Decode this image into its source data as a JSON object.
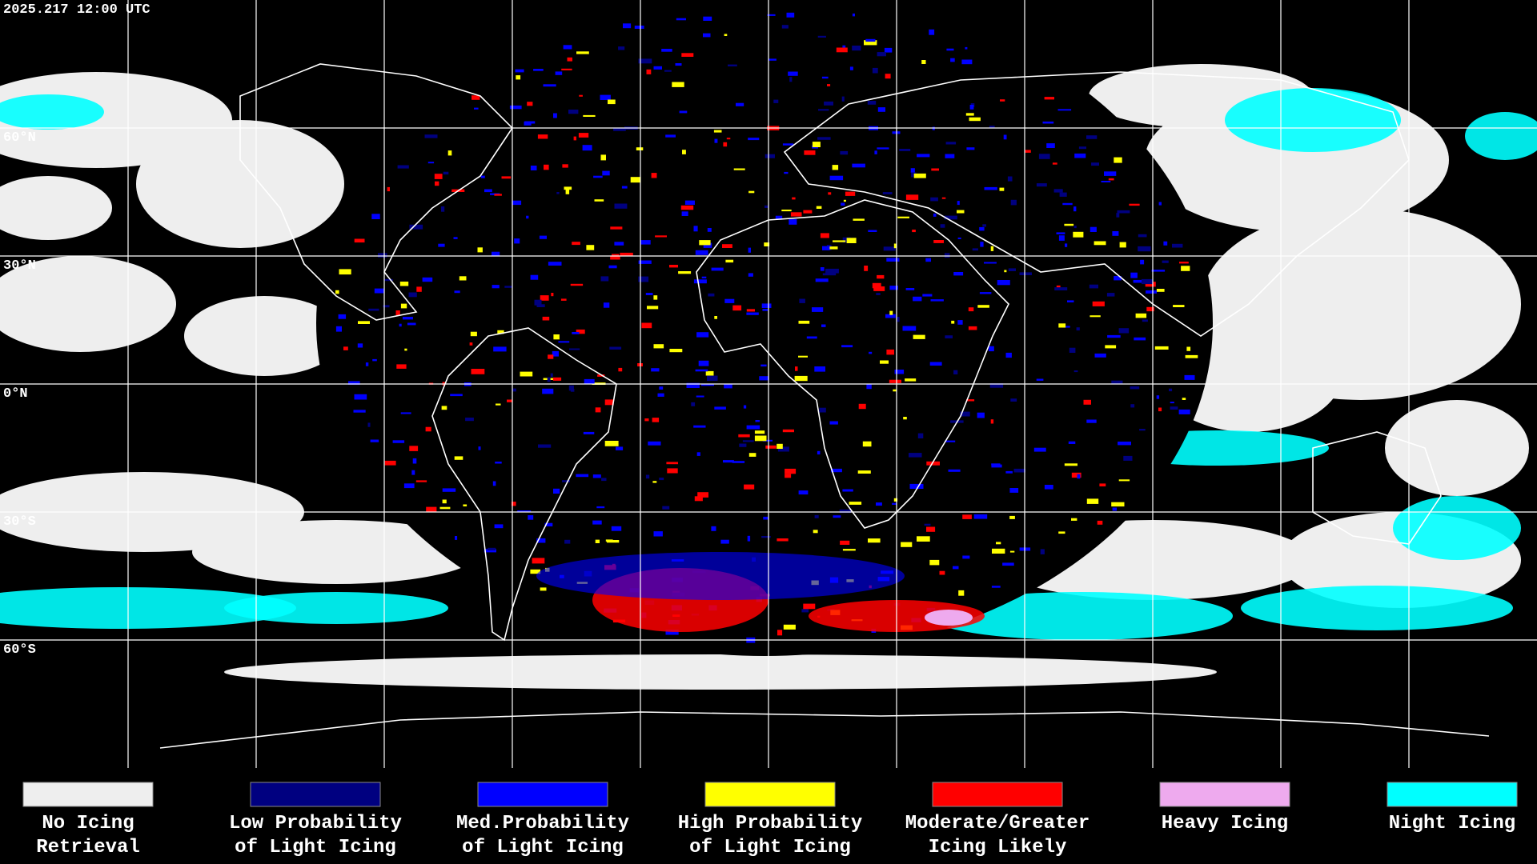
{
  "timestamp": "2025.217 12:00 UTC",
  "latitude_labels": [
    "60°N",
    "30°N",
    "0°N",
    "30°S",
    "60°S"
  ],
  "legend": {
    "items": [
      {
        "lines": [
          "No Icing",
          "Retrieval"
        ],
        "color": "#eeeeee"
      },
      {
        "lines": [
          "Low Probability",
          "of Light Icing"
        ],
        "color": "#000080"
      },
      {
        "lines": [
          "Med.Probability",
          "of Light Icing"
        ],
        "color": "#0000ff"
      },
      {
        "lines": [
          "High Probability",
          "of Light Icing"
        ],
        "color": "#ffff00"
      },
      {
        "lines": [
          "Moderate/Greater",
          "Icing Likely"
        ],
        "color": "#ff0000"
      },
      {
        "lines": [
          "Heavy Icing"
        ],
        "color": "#eeaaee"
      },
      {
        "lines": [
          "Night Icing"
        ],
        "color": "#00ffff"
      }
    ]
  }
}
